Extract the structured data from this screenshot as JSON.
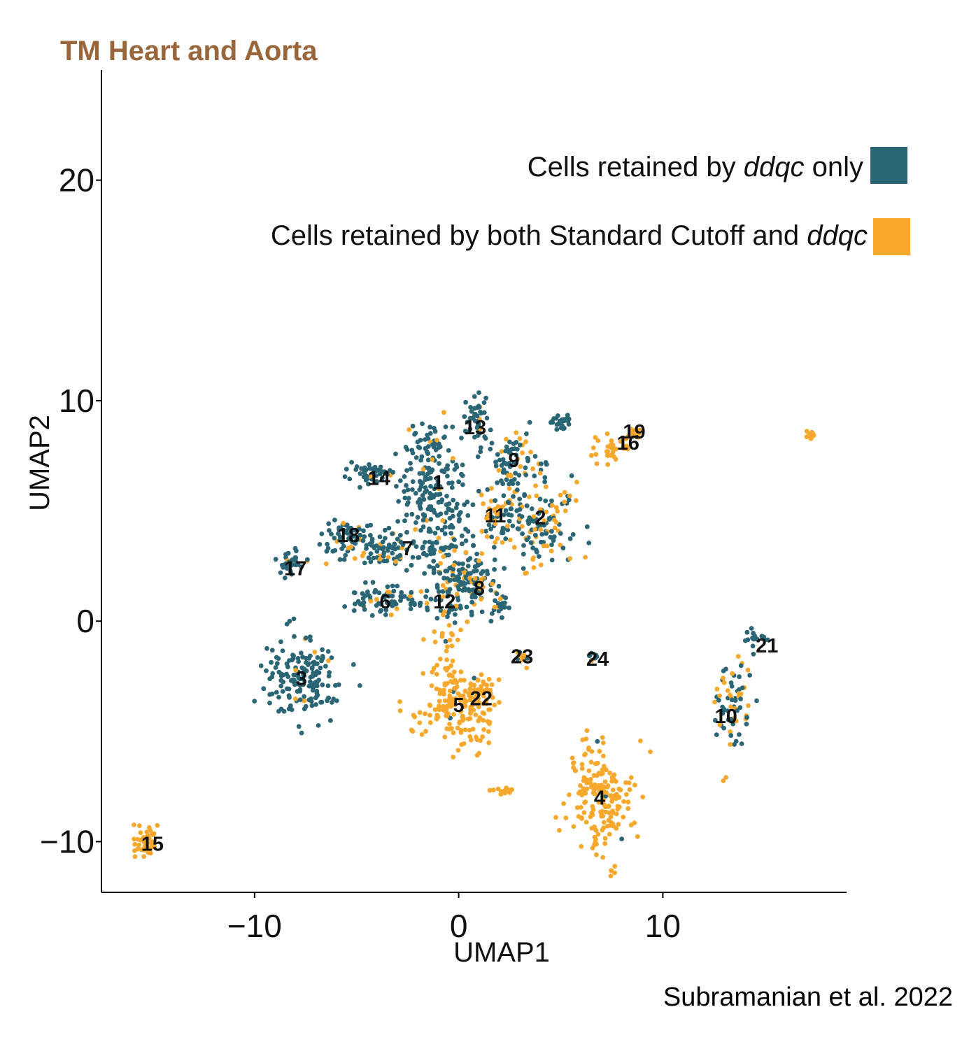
{
  "chart_data": {
    "type": "scatter",
    "title": "TM Heart and Aorta",
    "xlabel": "UMAP1",
    "ylabel": "UMAP2",
    "xlim": [
      -17.5,
      19
    ],
    "ylim": [
      -12.3,
      25
    ],
    "x_ticks": [
      -10,
      0,
      10
    ],
    "y_ticks": [
      -10,
      0,
      10,
      20
    ],
    "x_tick_labels": [
      "−10",
      "0",
      "10"
    ],
    "y_tick_labels": [
      "−10",
      "0",
      "10",
      "20"
    ],
    "grid": false,
    "legend_position": "top-right",
    "series": [
      {
        "name": "Cells retained by ddqc only",
        "name_plain": "Cells retained by ",
        "name_italic": "ddqc",
        "name_suffix": " only",
        "color": "#2a6675"
      },
      {
        "name": "Cells retained by both Standard Cutoff and ddqc",
        "name_plain": "Cells retained by both Standard Cutoff and ",
        "name_italic": "ddqc",
        "name_suffix": "",
        "color": "#f5a82c"
      }
    ],
    "clusters": [
      {
        "label": "1",
        "x": -1.0,
        "y": 6.3
      },
      {
        "label": "2",
        "x": 4.0,
        "y": 4.7
      },
      {
        "label": "3",
        "x": -7.7,
        "y": -2.6
      },
      {
        "label": "4",
        "x": 6.9,
        "y": -8.0
      },
      {
        "label": "5",
        "x": 0.0,
        "y": -3.8
      },
      {
        "label": "6",
        "x": -3.6,
        "y": 0.9
      },
      {
        "label": "7",
        "x": -2.5,
        "y": 3.3
      },
      {
        "label": "8",
        "x": 1.0,
        "y": 1.5
      },
      {
        "label": "9",
        "x": 2.7,
        "y": 7.3
      },
      {
        "label": "10",
        "x": 13.1,
        "y": -4.3
      },
      {
        "label": "11",
        "x": 1.8,
        "y": 4.8
      },
      {
        "label": "12",
        "x": -0.7,
        "y": 0.9
      },
      {
        "label": "13",
        "x": 0.8,
        "y": 8.8
      },
      {
        "label": "14",
        "x": -3.9,
        "y": 6.5
      },
      {
        "label": "15",
        "x": -15.0,
        "y": -10.1
      },
      {
        "label": "16",
        "x": 8.3,
        "y": 8.1
      },
      {
        "label": "17",
        "x": -8.0,
        "y": 2.4
      },
      {
        "label": "18",
        "x": -5.4,
        "y": 3.9
      },
      {
        "label": "19",
        "x": 8.6,
        "y": 8.6
      },
      {
        "label": "21",
        "x": 15.1,
        "y": -1.1
      },
      {
        "label": "22",
        "x": 1.1,
        "y": -3.5
      },
      {
        "label": "23",
        "x": 3.1,
        "y": -1.6
      },
      {
        "label": "24",
        "x": 6.8,
        "y": -1.7
      }
    ],
    "clouds": [
      {
        "cx": -1.1,
        "cy": 5.7,
        "sx": 0.9,
        "sy": 1.3,
        "n": 160,
        "mix": 0.08
      },
      {
        "cx": -1.6,
        "cy": 8.0,
        "sx": 0.6,
        "sy": 0.5,
        "n": 50,
        "mix": 0.1
      },
      {
        "cx": 4.0,
        "cy": 4.5,
        "sx": 0.9,
        "sy": 1.0,
        "n": 150,
        "mix": 0.35
      },
      {
        "cx": -7.7,
        "cy": -2.6,
        "sx": 0.9,
        "sy": 0.9,
        "n": 170,
        "mix": 0.04
      },
      {
        "cx": 6.9,
        "cy": -8.0,
        "sx": 0.8,
        "sy": 1.3,
        "n": 180,
        "mix": 0.99
      },
      {
        "cx": -0.1,
        "cy": -3.8,
        "sx": 1.0,
        "sy": 0.9,
        "n": 170,
        "mix": 0.98
      },
      {
        "cx": -3.5,
        "cy": 1.0,
        "sx": 1.2,
        "sy": 0.35,
        "n": 80,
        "mix": 0.1
      },
      {
        "cx": -3.0,
        "cy": 3.3,
        "sx": 1.5,
        "sy": 0.4,
        "n": 110,
        "mix": 0.2
      },
      {
        "cx": 0.6,
        "cy": 1.8,
        "sx": 0.7,
        "sy": 0.7,
        "n": 90,
        "mix": 0.25
      },
      {
        "cx": 2.6,
        "cy": 7.2,
        "sx": 0.5,
        "sy": 0.8,
        "n": 70,
        "mix": 0.3
      },
      {
        "cx": 13.4,
        "cy": -3.9,
        "sx": 0.5,
        "sy": 1.1,
        "n": 70,
        "mix": 0.45
      },
      {
        "cx": 1.9,
        "cy": 4.8,
        "sx": 0.4,
        "sy": 0.5,
        "n": 40,
        "mix": 0.5
      },
      {
        "cx": -0.4,
        "cy": 1.6,
        "sx": 0.6,
        "sy": 0.9,
        "n": 80,
        "mix": 0.15
      },
      {
        "cx": 0.9,
        "cy": 9.1,
        "sx": 0.3,
        "sy": 0.7,
        "n": 45,
        "mix": 0.03
      },
      {
        "cx": -4.3,
        "cy": 6.7,
        "sx": 0.6,
        "sy": 0.3,
        "n": 45,
        "mix": 0.05
      },
      {
        "cx": -15.3,
        "cy": -10.1,
        "sx": 0.3,
        "sy": 0.3,
        "n": 45,
        "mix": 1.0
      },
      {
        "cx": 7.5,
        "cy": 7.8,
        "sx": 0.6,
        "sy": 0.3,
        "n": 30,
        "mix": 1.0
      },
      {
        "cx": -8.2,
        "cy": 2.7,
        "sx": 0.4,
        "sy": 0.3,
        "n": 30,
        "mix": 0.02
      },
      {
        "cx": -5.6,
        "cy": 4.0,
        "sx": 0.7,
        "sy": 0.3,
        "n": 50,
        "mix": 0.1
      },
      {
        "cx": 8.6,
        "cy": 8.5,
        "sx": 0.3,
        "sy": 0.2,
        "n": 20,
        "mix": 1.0
      },
      {
        "cx": 14.6,
        "cy": -0.8,
        "sx": 0.3,
        "sy": 0.3,
        "n": 18,
        "mix": 0.05
      },
      {
        "cx": 1.3,
        "cy": -3.3,
        "sx": 0.3,
        "sy": 0.4,
        "n": 25,
        "mix": 1.0
      },
      {
        "cx": 3.1,
        "cy": -1.6,
        "sx": 0.2,
        "sy": 0.2,
        "n": 10,
        "mix": 0.6
      },
      {
        "cx": 6.5,
        "cy": -1.6,
        "sx": 0.2,
        "sy": 0.15,
        "n": 8,
        "mix": 0.2
      },
      {
        "cx": 5.0,
        "cy": 9.0,
        "sx": 0.35,
        "sy": 0.2,
        "n": 25,
        "mix": 0.0
      },
      {
        "cx": 17.2,
        "cy": 8.4,
        "sx": 0.1,
        "sy": 0.1,
        "n": 8,
        "mix": 1.0
      },
      {
        "cx": 2.2,
        "cy": -7.7,
        "sx": 0.4,
        "sy": 0.1,
        "n": 15,
        "mix": 1.0
      },
      {
        "cx": 2.1,
        "cy": 0.8,
        "sx": 0.3,
        "sy": 0.3,
        "n": 25,
        "mix": 0.2
      },
      {
        "cx": -0.6,
        "cy": -1.3,
        "sx": 0.35,
        "sy": 1.0,
        "n": 30,
        "mix": 0.95
      }
    ]
  },
  "credit": "Subramanian et al. 2022"
}
